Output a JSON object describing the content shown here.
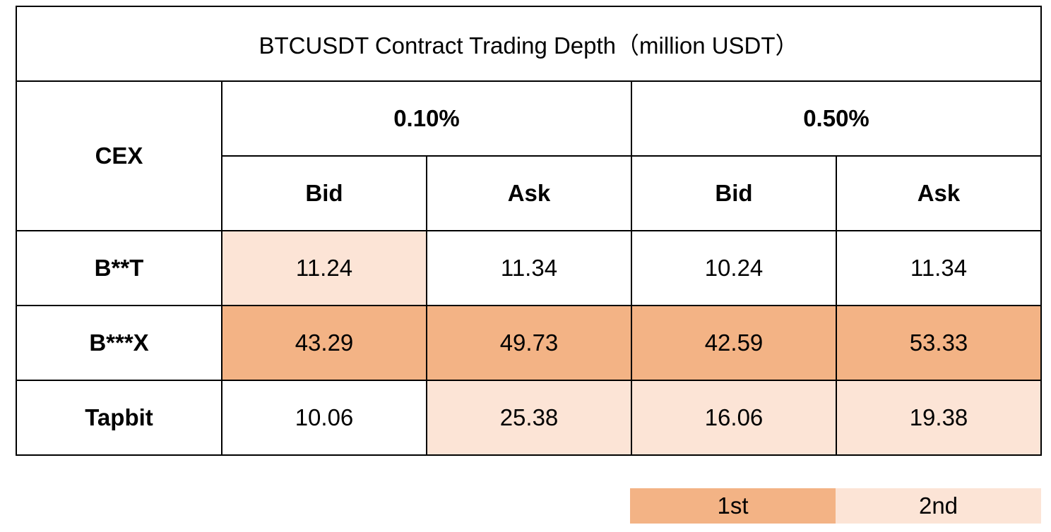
{
  "chart_data": {
    "type": "table",
    "title": "BTCUSDT Contract Trading Depth（million USDT）",
    "row_header": "CEX",
    "column_groups": [
      "0.10%",
      "0.50%"
    ],
    "sub_columns": [
      "Bid",
      "Ask",
      "Bid",
      "Ask"
    ],
    "rows": [
      {
        "name": "B**T",
        "values": [
          "11.24",
          "11.34",
          "10.24",
          "11.34"
        ],
        "ranks": [
          "2nd",
          "",
          "",
          ""
        ]
      },
      {
        "name": "B***X",
        "values": [
          "43.29",
          "49.73",
          "42.59",
          "53.33"
        ],
        "ranks": [
          "1st",
          "1st",
          "1st",
          "1st"
        ]
      },
      {
        "name": "Tapbit",
        "values": [
          "10.06",
          "25.38",
          "16.06",
          "19.38"
        ],
        "ranks": [
          "",
          "2nd",
          "2nd",
          "2nd"
        ]
      }
    ],
    "legend": [
      {
        "label": "1st",
        "color": "#f3b385"
      },
      {
        "label": "2nd",
        "color": "#fce4d6"
      }
    ]
  }
}
